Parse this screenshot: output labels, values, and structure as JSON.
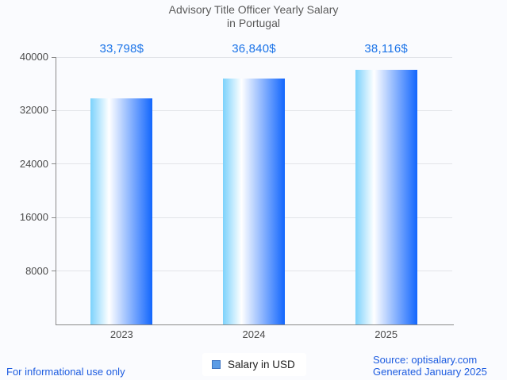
{
  "chart_data": {
    "type": "bar",
    "title": "Advisory Title Officer Yearly Salary in Portugal",
    "title_lines": [
      "Advisory Title Officer Yearly Salary",
      "in Portugal"
    ],
    "categories": [
      "2023",
      "2024",
      "2025"
    ],
    "values": [
      33798,
      36840,
      38116
    ],
    "value_labels": [
      "33,798$",
      "36,840$",
      "38,116$"
    ],
    "series_name": "Salary in USD",
    "ylim": [
      0,
      40000
    ],
    "yticks": [
      8000,
      16000,
      24000,
      32000,
      40000
    ],
    "ytick_labels": [
      "8000",
      "16000",
      "24000",
      "32000",
      "40000"
    ],
    "grid": true,
    "legend_position": "bottom",
    "bar_color_gradient": [
      "#7cd2fc",
      "#ffffff",
      "#1266fd"
    ]
  },
  "colors": {
    "background": "#fafbfe",
    "grid": "#e2e4e9",
    "axis": "#8a8a8a",
    "tick_text": "#4b4b4b",
    "title_text": "#5a5a5a",
    "value_text": "#1a73e8",
    "footer_text": "#1d5ce0",
    "legend_bg": "#ffffff",
    "legend_marker_fill": "#5c9ce5",
    "legend_marker_border": "#3e74c2"
  },
  "legend": {
    "label": "Salary in USD"
  },
  "footer": {
    "left_note": "For informational use only",
    "source": "Source: optisalary.com",
    "generated": "Generated January 2025"
  }
}
